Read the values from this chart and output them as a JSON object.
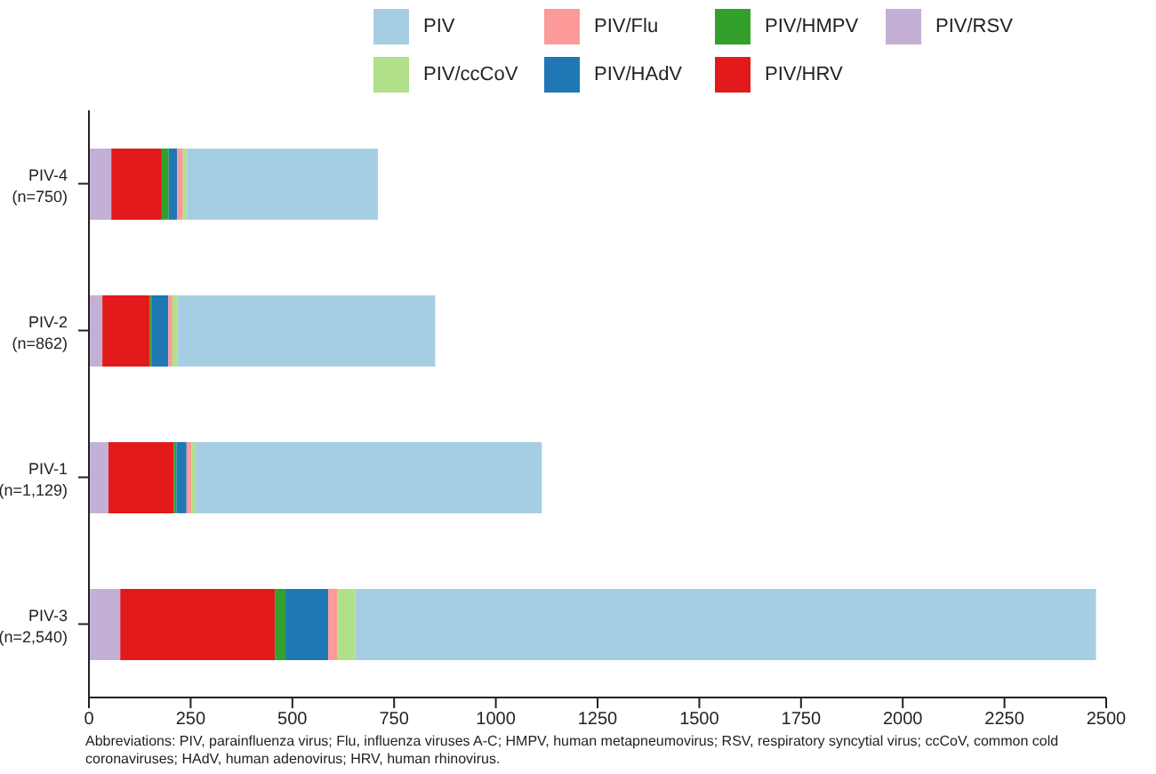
{
  "chart_data": {
    "type": "bar",
    "orientation": "horizontal",
    "stacked": true,
    "categories": [
      "PIV-4\n(n=750)",
      "PIV-2\n(n=862)",
      "PIV-1\n(n=1,129)",
      "PIV-3\n(n=2,540)"
    ],
    "series": [
      {
        "name": "PIV/RSV",
        "color": "#c5b0d5",
        "values": [
          55,
          33,
          48,
          77
        ]
      },
      {
        "name": "PIV/HRV",
        "color": "#e31a1c",
        "values": [
          124,
          117,
          160,
          380
        ]
      },
      {
        "name": "PIV/HMPV",
        "color": "#33a02c",
        "values": [
          17,
          5,
          7,
          26
        ]
      },
      {
        "name": "PIV/HAdV",
        "color": "#1f78b4",
        "values": [
          21,
          40,
          25,
          105
        ]
      },
      {
        "name": "PIV/Flu",
        "color": "#fb9a99",
        "values": [
          14,
          10,
          12,
          22
        ]
      },
      {
        "name": "PIV/ccCoV",
        "color": "#b2df8a",
        "values": [
          9,
          13,
          10,
          45
        ]
      },
      {
        "name": "PIV",
        "color": "#a6cee3",
        "values": [
          470,
          633,
          851,
          1820
        ]
      }
    ],
    "xlim": [
      0,
      2500
    ],
    "xticks": [
      0,
      250,
      500,
      750,
      1000,
      1250,
      1500,
      1750,
      2000,
      2250,
      2500
    ],
    "grid": false,
    "legend": "top",
    "annotations": [
      "Abbreviations: PIV, parainfluenza virus; Flu, influenza viruses A-C; HMPV, human metapneumovirus; RSV, respiratory syncytial virus; ccCoV, common cold coronaviruses; HAdV, human adenovirus; HRV, human rhinovirus."
    ]
  }
}
